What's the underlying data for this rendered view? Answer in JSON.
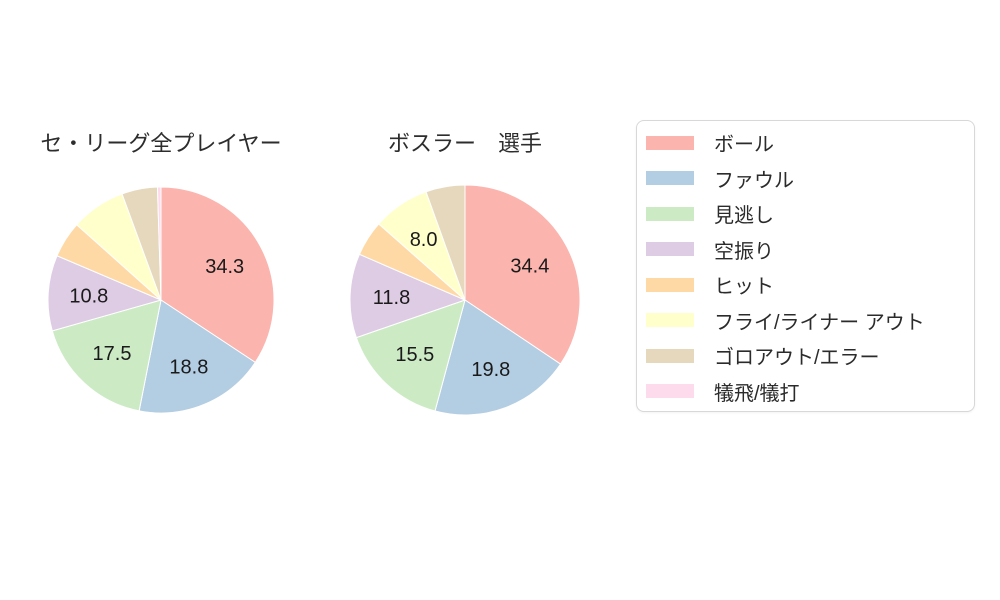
{
  "palette": [
    "#fbb4ae",
    "#b3cde3",
    "#ccebc5",
    "#decbe4",
    "#fed9a6",
    "#ffffcc",
    "#e5d8bd",
    "#fddaec"
  ],
  "styles": {
    "title_color": "#2d2d2d",
    "label_color": "#1a1a1a",
    "legend_text_color": "#2b2b2b",
    "legend_border_color": "#d8d8d8",
    "slice_stroke": "#ffffff",
    "background": "#ffffff"
  },
  "legend": {
    "items": [
      {
        "label": "ボール",
        "color": "#fbb4ae"
      },
      {
        "label": "ファウル",
        "color": "#b3cde3"
      },
      {
        "label": "見逃し",
        "color": "#ccebc5"
      },
      {
        "label": "空振り",
        "color": "#decbe4"
      },
      {
        "label": "ヒット",
        "color": "#fed9a6"
      },
      {
        "label": "フライ/ライナー アウト",
        "color": "#ffffcc"
      },
      {
        "label": "ゴロアウト/エラー",
        "color": "#e5d8bd"
      },
      {
        "label": "犠飛/犠打",
        "color": "#fddaec"
      }
    ]
  },
  "chart_data": [
    {
      "type": "pie",
      "title": "セ・リーグ全プレイヤー",
      "categories": [
        "ボール",
        "ファウル",
        "見逃し",
        "空振り",
        "ヒット",
        "フライ/ライナー アウト",
        "ゴロアウト/エラー",
        "犠飛/犠打"
      ],
      "values": [
        34.3,
        18.8,
        17.5,
        10.8,
        5.2,
        7.8,
        5.1,
        0.5
      ],
      "value_labels": [
        "34.3",
        "18.8",
        "17.5",
        "10.8",
        "",
        "",
        "",
        ""
      ],
      "start_angle": "12-oclock",
      "direction": "clockwise",
      "legend_position": "right"
    },
    {
      "type": "pie",
      "title": "ボスラー　選手",
      "categories": [
        "ボール",
        "ファウル",
        "見逃し",
        "空振り",
        "ヒット",
        "フライ/ライナー アウト",
        "ゴロアウト/エラー",
        "犠飛/犠打"
      ],
      "values": [
        34.4,
        19.8,
        15.5,
        11.8,
        5.0,
        8.0,
        5.5,
        0
      ],
      "value_labels": [
        "34.4",
        "19.8",
        "15.5",
        "11.8",
        "",
        "8.0",
        "",
        ""
      ],
      "start_angle": "12-oclock",
      "direction": "clockwise",
      "legend_position": "right"
    }
  ]
}
